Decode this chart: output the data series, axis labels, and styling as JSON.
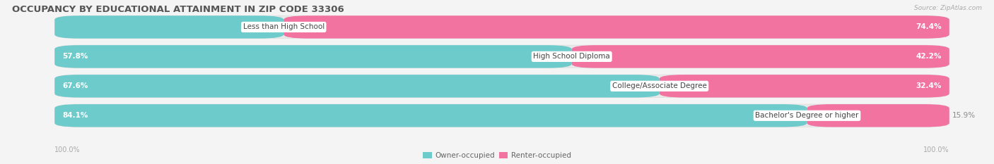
{
  "title": "OCCUPANCY BY EDUCATIONAL ATTAINMENT IN ZIP CODE 33306",
  "source": "Source: ZipAtlas.com",
  "categories": [
    "Less than High School",
    "High School Diploma",
    "College/Associate Degree",
    "Bachelor's Degree or higher"
  ],
  "owner_pct": [
    25.6,
    57.8,
    67.6,
    84.1
  ],
  "renter_pct": [
    74.4,
    42.2,
    32.4,
    15.9
  ],
  "owner_color": "#6ECBCC",
  "renter_color": "#F272A0",
  "bg_color": "#F4F4F4",
  "row_bg_color": "#E8E8E8",
  "title_color": "#555555",
  "label_color": "#555555",
  "pct_outside_color": "#888888",
  "pct_inside_color": "#FFFFFF",
  "title_fontsize": 9.5,
  "cat_fontsize": 7.5,
  "pct_fontsize": 7.5,
  "legend_fontsize": 7.5,
  "source_fontsize": 6.5,
  "axis_fontsize": 7.0
}
